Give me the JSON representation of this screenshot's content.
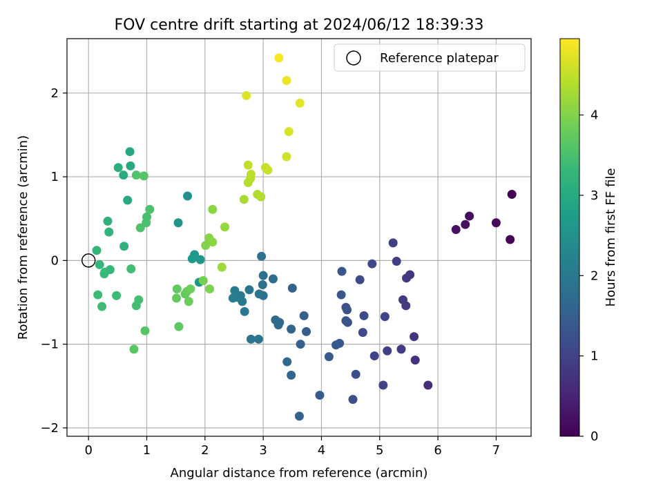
{
  "chart_data": {
    "type": "scatter",
    "title": "FOV centre drift starting at 2024/06/12 18:39:33",
    "xlabel": "Angular distance from reference (arcmin)",
    "ylabel": "Rotation from reference (arcmin)",
    "xlim": [
      -0.37,
      7.6
    ],
    "ylim": [
      -2.1,
      2.65
    ],
    "xticks": [
      0,
      1,
      2,
      3,
      4,
      5,
      6,
      7
    ],
    "yticks": [
      -2,
      -1,
      0,
      1,
      2
    ],
    "grid": true,
    "legend": {
      "position": "top-right",
      "entries": [
        "Reference platepar"
      ]
    },
    "reference_point": {
      "x": 0,
      "y": 0
    },
    "colorbar": {
      "label": "Hours from first FF file",
      "range": [
        0,
        4.95
      ],
      "ticks": [
        0,
        1,
        2,
        3,
        4
      ],
      "colormap": "viridis"
    },
    "points": [
      {
        "x": 7.27,
        "y": 0.79,
        "c": 0.0
      },
      {
        "x": 7.24,
        "y": 0.25,
        "c": 0.05
      },
      {
        "x": 7.0,
        "y": 0.45,
        "c": 0.1
      },
      {
        "x": 6.54,
        "y": 0.53,
        "c": 0.15
      },
      {
        "x": 6.47,
        "y": 0.43,
        "c": 0.2
      },
      {
        "x": 6.31,
        "y": 0.37,
        "c": 0.25
      },
      {
        "x": 5.83,
        "y": -1.49,
        "c": 0.65
      },
      {
        "x": 5.61,
        "y": -1.19,
        "c": 0.7
      },
      {
        "x": 5.59,
        "y": -0.91,
        "c": 0.75
      },
      {
        "x": 5.52,
        "y": -0.17,
        "c": 0.78
      },
      {
        "x": 5.46,
        "y": -0.21,
        "c": 0.8
      },
      {
        "x": 5.45,
        "y": -0.54,
        "c": 0.85
      },
      {
        "x": 5.4,
        "y": -0.47,
        "c": 0.88
      },
      {
        "x": 5.37,
        "y": -1.06,
        "c": 0.9
      },
      {
        "x": 5.29,
        "y": -0.01,
        "c": 0.92
      },
      {
        "x": 5.23,
        "y": 0.21,
        "c": 0.95
      },
      {
        "x": 5.13,
        "y": -1.08,
        "c": 0.98
      },
      {
        "x": 5.09,
        "y": -0.67,
        "c": 1.0
      },
      {
        "x": 5.06,
        "y": -1.49,
        "c": 1.02
      },
      {
        "x": 4.91,
        "y": -1.14,
        "c": 1.05
      },
      {
        "x": 4.87,
        "y": -0.04,
        "c": 1.08
      },
      {
        "x": 4.73,
        "y": -0.66,
        "c": 1.1
      },
      {
        "x": 4.71,
        "y": -0.86,
        "c": 1.12
      },
      {
        "x": 4.66,
        "y": -0.23,
        "c": 1.15
      },
      {
        "x": 4.59,
        "y": -1.36,
        "c": 1.18
      },
      {
        "x": 4.54,
        "y": -1.66,
        "c": 1.2
      },
      {
        "x": 4.42,
        "y": -0.56,
        "c": 1.22
      },
      {
        "x": 4.44,
        "y": -0.59,
        "c": 1.25
      },
      {
        "x": 4.42,
        "y": -0.72,
        "c": 1.28
      },
      {
        "x": 4.45,
        "y": -0.74,
        "c": 1.3
      },
      {
        "x": 4.35,
        "y": -0.13,
        "c": 1.32
      },
      {
        "x": 4.34,
        "y": -0.41,
        "c": 1.35
      },
      {
        "x": 4.31,
        "y": -0.99,
        "c": 1.38
      },
      {
        "x": 4.25,
        "y": -1.01,
        "c": 1.4
      },
      {
        "x": 4.13,
        "y": -1.15,
        "c": 1.42
      },
      {
        "x": 3.97,
        "y": -1.61,
        "c": 1.45
      },
      {
        "x": 3.74,
        "y": -0.85,
        "c": 1.48
      },
      {
        "x": 3.7,
        "y": -0.66,
        "c": 1.5
      },
      {
        "x": 3.64,
        "y": -1.0,
        "c": 1.52
      },
      {
        "x": 3.62,
        "y": -1.86,
        "c": 1.55
      },
      {
        "x": 3.5,
        "y": -0.33,
        "c": 1.58
      },
      {
        "x": 3.48,
        "y": -0.82,
        "c": 1.6
      },
      {
        "x": 3.48,
        "y": -1.37,
        "c": 1.62
      },
      {
        "x": 3.41,
        "y": -1.21,
        "c": 1.65
      },
      {
        "x": 3.28,
        "y": -0.74,
        "c": 1.68
      },
      {
        "x": 3.26,
        "y": -0.77,
        "c": 1.7
      },
      {
        "x": 3.21,
        "y": -0.71,
        "c": 1.72
      },
      {
        "x": 3.17,
        "y": -0.22,
        "c": 1.75
      },
      {
        "x": 3.0,
        "y": -0.42,
        "c": 1.78
      },
      {
        "x": 3.0,
        "y": -0.18,
        "c": 1.8
      },
      {
        "x": 2.99,
        "y": -0.29,
        "c": 1.82
      },
      {
        "x": 2.97,
        "y": 0.05,
        "c": 1.85
      },
      {
        "x": 2.93,
        "y": -0.4,
        "c": 1.88
      },
      {
        "x": 2.92,
        "y": -0.94,
        "c": 1.9
      },
      {
        "x": 2.79,
        "y": -0.94,
        "c": 1.92
      },
      {
        "x": 2.76,
        "y": -0.35,
        "c": 1.95
      },
      {
        "x": 2.68,
        "y": -0.61,
        "c": 1.98
      },
      {
        "x": 2.64,
        "y": -0.49,
        "c": 2.0
      },
      {
        "x": 2.61,
        "y": -0.42,
        "c": 2.02
      },
      {
        "x": 2.55,
        "y": -0.44,
        "c": 2.05
      },
      {
        "x": 2.51,
        "y": -0.36,
        "c": 2.08
      },
      {
        "x": 2.48,
        "y": -0.45,
        "c": 2.1
      },
      {
        "x": 1.7,
        "y": 0.77,
        "c": 2.5
      },
      {
        "x": 1.54,
        "y": 0.45,
        "c": 2.55
      },
      {
        "x": 1.92,
        "y": 0.01,
        "c": 2.6
      },
      {
        "x": 1.9,
        "y": -0.26,
        "c": 2.62
      },
      {
        "x": 1.82,
        "y": 0.07,
        "c": 2.65
      },
      {
        "x": 1.78,
        "y": 0.02,
        "c": 2.68
      },
      {
        "x": 0.71,
        "y": 1.3,
        "c": 2.95
      },
      {
        "x": 0.72,
        "y": 1.13,
        "c": 2.98
      },
      {
        "x": 0.67,
        "y": 0.72,
        "c": 3.0
      },
      {
        "x": 0.6,
        "y": 1.02,
        "c": 3.05
      },
      {
        "x": 0.51,
        "y": 1.11,
        "c": 3.1
      },
      {
        "x": 0.61,
        "y": 0.17,
        "c": 3.15
      },
      {
        "x": 0.33,
        "y": 0.47,
        "c": 3.2
      },
      {
        "x": 0.35,
        "y": 0.34,
        "c": 3.22
      },
      {
        "x": 0.14,
        "y": 0.12,
        "c": 3.25
      },
      {
        "x": 0.19,
        "y": -0.05,
        "c": 3.28
      },
      {
        "x": 0.28,
        "y": -0.14,
        "c": 3.3
      },
      {
        "x": 0.37,
        "y": -0.11,
        "c": 3.32
      },
      {
        "x": 0.27,
        "y": -0.16,
        "c": 3.34
      },
      {
        "x": 0.16,
        "y": -0.41,
        "c": 3.36
      },
      {
        "x": 0.48,
        "y": -0.42,
        "c": 3.38
      },
      {
        "x": 0.23,
        "y": -0.55,
        "c": 3.4
      },
      {
        "x": 0.73,
        "y": -0.1,
        "c": 3.42
      },
      {
        "x": 0.82,
        "y": -0.54,
        "c": 3.44
      },
      {
        "x": 0.86,
        "y": -0.47,
        "c": 3.46
      },
      {
        "x": 1.0,
        "y": 0.52,
        "c": 3.48
      },
      {
        "x": 0.99,
        "y": 0.45,
        "c": 3.5
      },
      {
        "x": 1.05,
        "y": 0.61,
        "c": 3.52
      },
      {
        "x": 0.89,
        "y": 0.39,
        "c": 3.55
      },
      {
        "x": 0.82,
        "y": 1.02,
        "c": 3.58
      },
      {
        "x": 0.95,
        "y": 1.01,
        "c": 3.6
      },
      {
        "x": 0.97,
        "y": -0.84,
        "c": 3.62
      },
      {
        "x": 0.78,
        "y": -1.06,
        "c": 3.65
      },
      {
        "x": 1.55,
        "y": -0.79,
        "c": 3.7
      },
      {
        "x": 1.52,
        "y": -0.34,
        "c": 3.72
      },
      {
        "x": 1.51,
        "y": -0.45,
        "c": 3.74
      },
      {
        "x": 1.66,
        "y": -0.4,
        "c": 3.76
      },
      {
        "x": 1.69,
        "y": -0.37,
        "c": 3.78
      },
      {
        "x": 1.72,
        "y": -0.49,
        "c": 3.8
      },
      {
        "x": 1.75,
        "y": -0.34,
        "c": 3.82
      },
      {
        "x": 1.97,
        "y": -0.24,
        "c": 3.9
      },
      {
        "x": 2.08,
        "y": -0.34,
        "c": 3.95
      },
      {
        "x": 2.01,
        "y": 0.18,
        "c": 4.0
      },
      {
        "x": 2.07,
        "y": 0.27,
        "c": 4.05
      },
      {
        "x": 2.13,
        "y": 0.22,
        "c": 4.08
      },
      {
        "x": 2.13,
        "y": 0.61,
        "c": 4.1
      },
      {
        "x": 2.34,
        "y": 0.4,
        "c": 4.15
      },
      {
        "x": 2.29,
        "y": -0.08,
        "c": 4.2
      },
      {
        "x": 2.67,
        "y": 0.73,
        "c": 4.3
      },
      {
        "x": 2.9,
        "y": 0.79,
        "c": 4.35
      },
      {
        "x": 2.96,
        "y": 0.76,
        "c": 4.38
      },
      {
        "x": 2.74,
        "y": 0.93,
        "c": 4.4
      },
      {
        "x": 2.78,
        "y": 0.98,
        "c": 4.42
      },
      {
        "x": 2.79,
        "y": 1.03,
        "c": 4.45
      },
      {
        "x": 2.74,
        "y": 1.14,
        "c": 4.48
      },
      {
        "x": 3.04,
        "y": 1.11,
        "c": 4.52
      },
      {
        "x": 3.08,
        "y": 1.08,
        "c": 4.55
      },
      {
        "x": 3.4,
        "y": 1.24,
        "c": 4.6
      },
      {
        "x": 3.44,
        "y": 1.54,
        "c": 4.65
      },
      {
        "x": 2.71,
        "y": 1.97,
        "c": 4.7
      },
      {
        "x": 3.63,
        "y": 1.88,
        "c": 4.75
      },
      {
        "x": 3.4,
        "y": 2.15,
        "c": 4.82
      },
      {
        "x": 3.27,
        "y": 2.42,
        "c": 4.9
      }
    ]
  }
}
